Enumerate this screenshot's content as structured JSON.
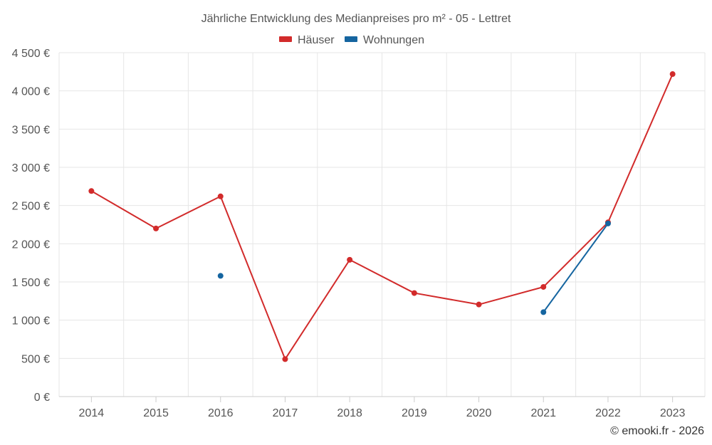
{
  "chart_data": {
    "type": "line",
    "title": "Jährliche Entwicklung des Medianpreises pro m² - 05 - Lettret",
    "categories": [
      "2014",
      "2015",
      "2016",
      "2017",
      "2018",
      "2019",
      "2020",
      "2021",
      "2022",
      "2023"
    ],
    "series": [
      {
        "name": "Häuser",
        "color": "#d22b2b",
        "values": [
          2690,
          2200,
          2620,
          490,
          1790,
          1355,
          1205,
          1435,
          2280,
          4220
        ]
      },
      {
        "name": "Wohnungen",
        "color": "#1565a0",
        "values": [
          null,
          null,
          1580,
          null,
          null,
          null,
          null,
          1105,
          2265,
          null
        ]
      }
    ],
    "y_ticks": [
      "0 €",
      "500 €",
      "1 000 €",
      "1 500 €",
      "2 000 €",
      "2 500 €",
      "3 000 €",
      "3 500 €",
      "4 000 €",
      "4 500 €"
    ],
    "ylim": [
      0,
      4500
    ],
    "grid": true,
    "legend_position": "top-center",
    "xlabel": "",
    "ylabel": ""
  },
  "credit": "© emooki.fr - 2026"
}
